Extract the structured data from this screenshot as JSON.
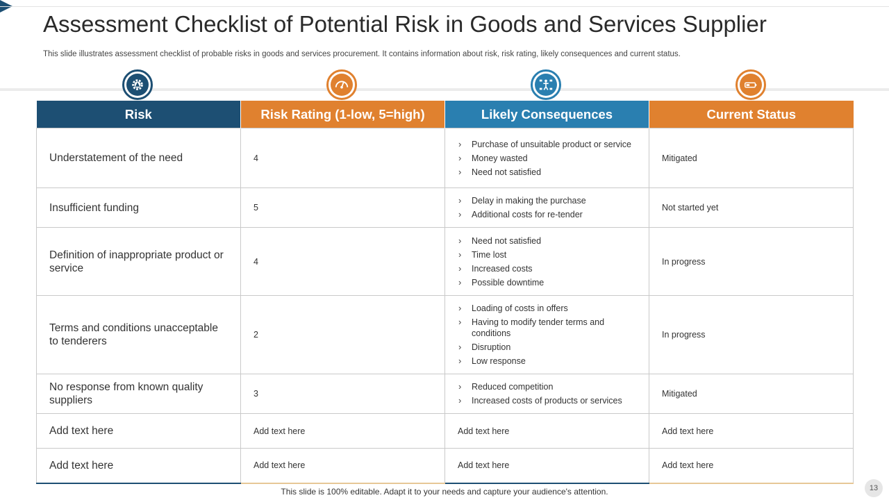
{
  "title": "Assessment Checklist of Potential Risk in Goods and Services Supplier",
  "subtitle": "This slide illustrates assessment checklist of probable risks in goods and services procurement. It contains information about risk, risk rating, likely consequences and current status.",
  "colors": {
    "navy": "#1d4f73",
    "orange": "#e0812f",
    "blue": "#2a7fb0"
  },
  "icons": [
    "gear-warning-icon",
    "speedometer-icon",
    "person-network-icon",
    "battery-low-icon"
  ],
  "table": {
    "headers": [
      "Risk",
      "Risk Rating (1-low, 5=high)",
      "Likely Consequences",
      "Current Status"
    ],
    "rows": [
      {
        "risk": "Understatement  of the need",
        "rating": "4",
        "consequences": [
          "Purchase of unsuitable product or service",
          "Money wasted",
          "Need not satisfied"
        ],
        "status": "Mitigated"
      },
      {
        "risk": "Insufficient  funding",
        "rating": "5",
        "consequences": [
          "Delay in making the purchase",
          "Additional costs for re-tender"
        ],
        "status": "Not started yet"
      },
      {
        "risk": "Definition of inappropriate product or service",
        "rating": "4",
        "consequences": [
          "Need not satisfied",
          "Time lost",
          "Increased costs",
          "Possible downtime"
        ],
        "status": "In progress"
      },
      {
        "risk": "Terms and conditions unacceptable to tenderers",
        "rating": "2",
        "consequences": [
          "Loading of costs in offers",
          "Having to modify tender terms and conditions",
          "Disruption",
          "Low response"
        ],
        "status": "In progress"
      },
      {
        "risk": "No response from known quality suppliers",
        "rating": "3",
        "consequences": [
          "Reduced competition",
          "Increased costs of products or services"
        ],
        "status": "Mitigated"
      },
      {
        "risk": "Add text here",
        "rating": "Add text here",
        "consequences_text": "Add text here",
        "status": "Add text here"
      },
      {
        "risk": "Add text here",
        "rating": "Add text here",
        "consequences_text": "Add text here",
        "status": "Add text here"
      }
    ]
  },
  "footer": "This slide is 100% editable. Adapt it to your needs and capture your audience's attention.",
  "page_number": "13"
}
